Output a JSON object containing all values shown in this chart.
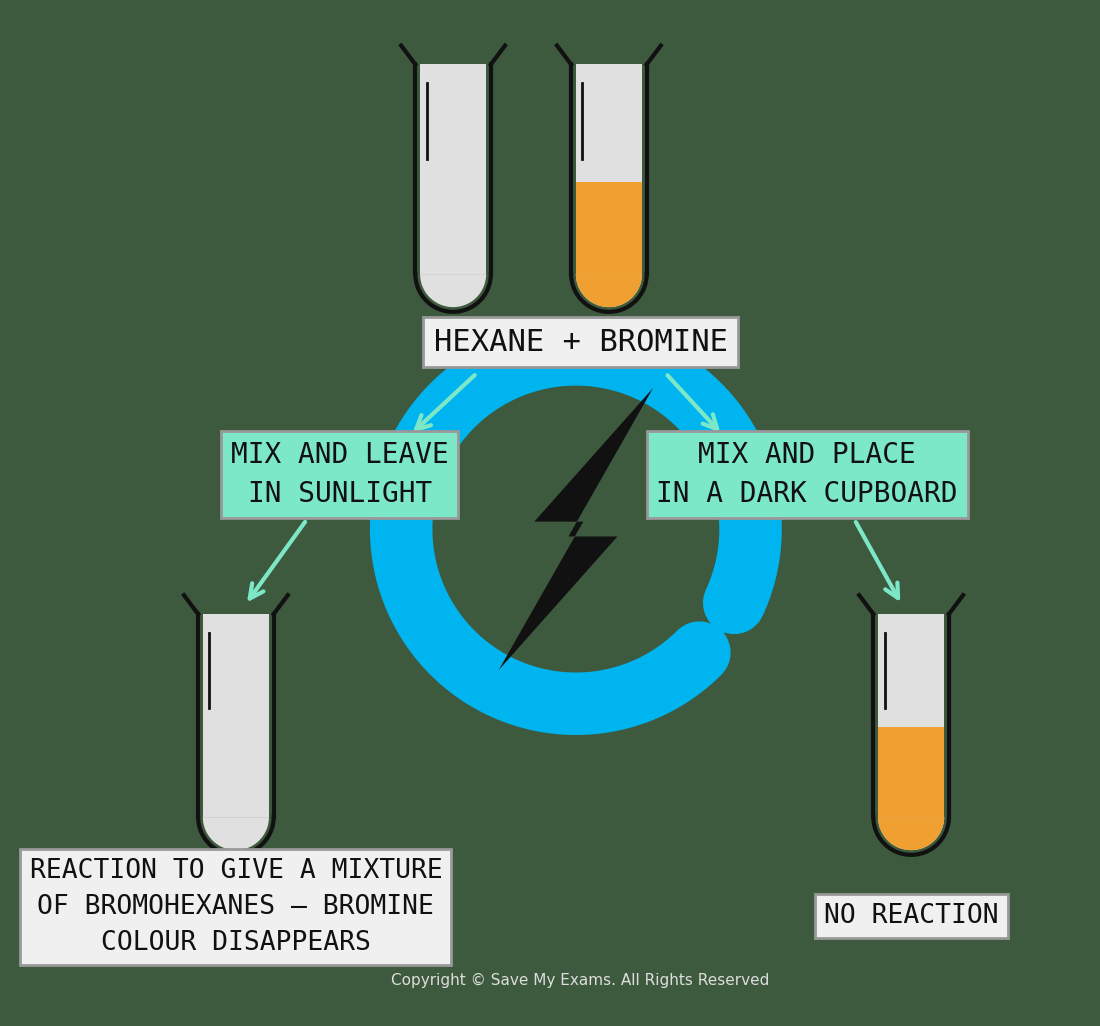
{
  "background_color": "#3d5a3e",
  "title_text": "HEXANE + BROMINE",
  "title_box_color": "#f0f0f0",
  "label_left": "MIX AND LEAVE\nIN SUNLIGHT",
  "label_right": "MIX AND PLACE\nIN A DARK CUPBOARD",
  "label_box_color": "#7de8c8",
  "result_left": "REACTION TO GIVE A MIXTURE\nOF BROMOHEXANES – BROMINE\nCOLOUR DISAPPEARS",
  "result_right": "NO REACTION",
  "result_box_color": "#f0f0f0",
  "tube_color_empty": "#e0e0e0",
  "tube_color_bromine": "#f0a030",
  "tube_outline": "#111111",
  "arrow_color": "#7de8c8",
  "lightning_blue": "#00b4f0",
  "lightning_black": "#111111",
  "copyright": "Copyright © Save My Exams. All Rights Reserved",
  "font_color": "#111111"
}
